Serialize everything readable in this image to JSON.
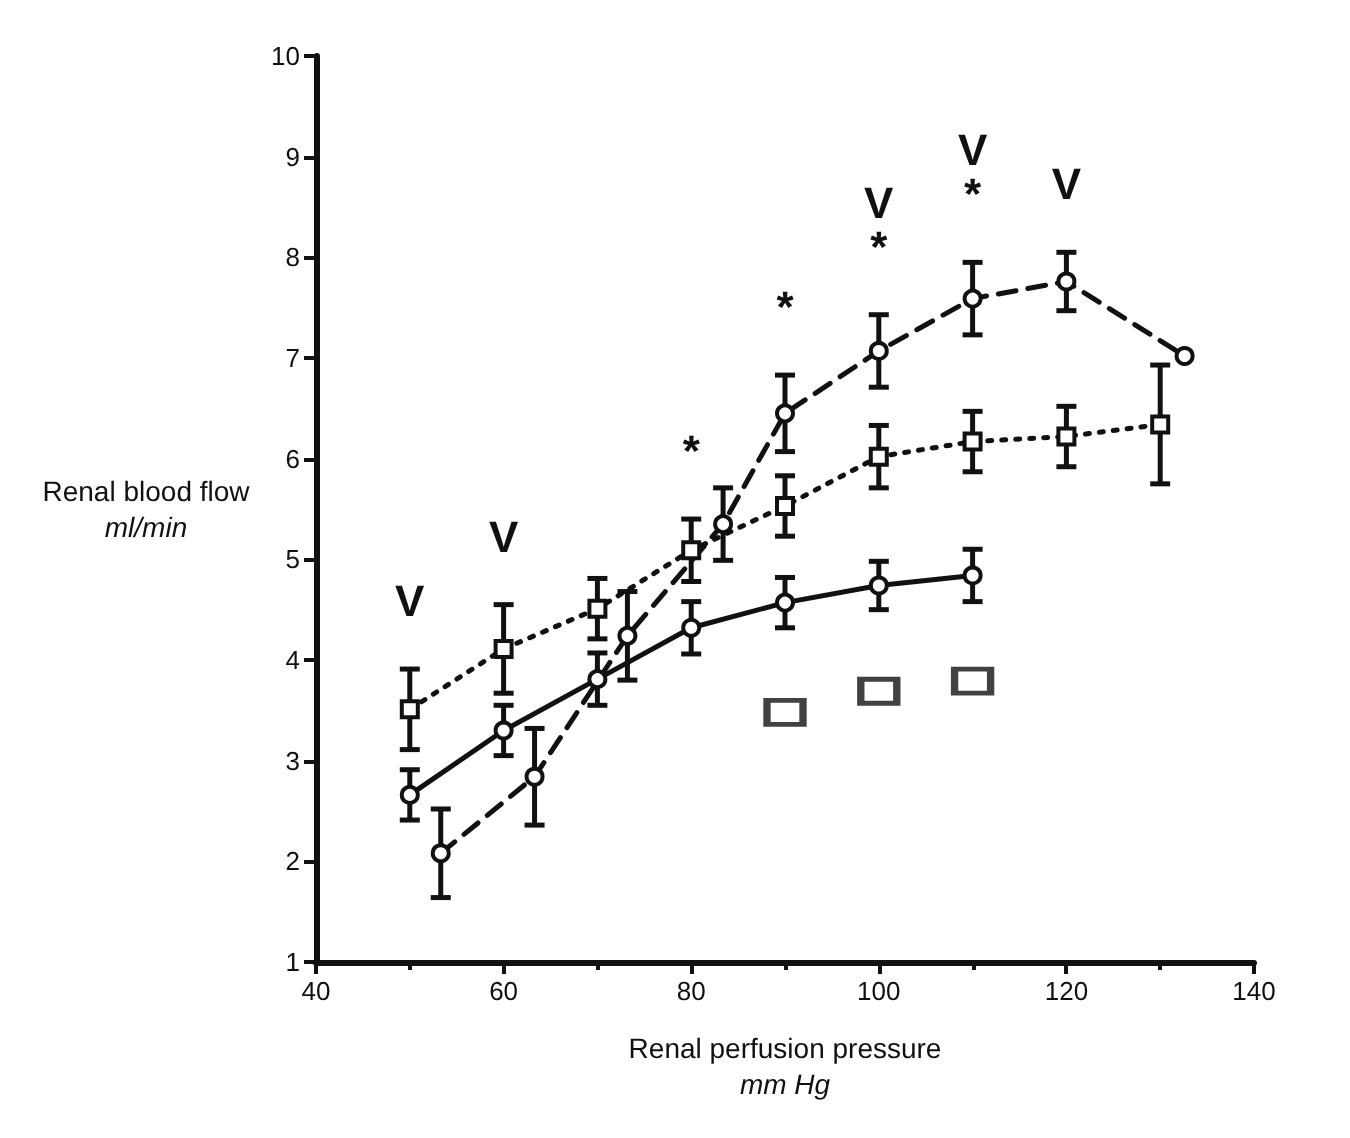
{
  "chart_data": {
    "type": "line",
    "xlabel": "Renal perfusion pressure\nmm Hg",
    "ylabel": "Renal blood flow\nml/min",
    "xlim": [
      40,
      140
    ],
    "xticks": [
      40,
      60,
      80,
      100,
      120,
      140
    ],
    "ylim": [
      1,
      10
    ],
    "yticks": [
      1,
      2,
      3,
      4,
      5,
      6,
      7,
      8,
      9,
      10
    ],
    "grid": false,
    "series": [
      {
        "color": "#111111",
        "marker": "circle",
        "line_style": "solid",
        "x": [
          50,
          60,
          70,
          80,
          90,
          100,
          110
        ],
        "values": [
          2.66,
          3.3,
          3.81,
          4.32,
          4.57,
          4.74,
          4.84
        ],
        "errors": [
          0.25,
          0.25,
          0.26,
          0.26,
          0.25,
          0.24,
          0.26
        ]
      },
      {
        "color": "#111111",
        "marker": "circle",
        "line_style": "dashed",
        "x": [
          53.3,
          63.3,
          73.2,
          83.4,
          90,
          100,
          110,
          120,
          132.6
        ],
        "values": [
          2.08,
          2.84,
          4.24,
          5.35,
          6.45,
          7.07,
          7.59,
          7.76,
          7.02
        ],
        "errors": [
          0.44,
          0.48,
          0.44,
          0.36,
          0.38,
          0.36,
          0.36,
          0.29,
          null
        ]
      },
      {
        "color": "#111111",
        "marker": "square",
        "line_style": "dotted",
        "x": [
          50,
          60,
          70,
          80,
          90,
          100,
          110,
          120,
          130
        ],
        "values": [
          3.51,
          4.11,
          4.51,
          5.09,
          5.53,
          6.02,
          6.17,
          6.22,
          6.34
        ],
        "errors": [
          0.4,
          0.44,
          0.3,
          0.31,
          0.3,
          0.31,
          0.3,
          0.3,
          0.59
        ]
      },
      {
        "type": "scatter",
        "color": "#111111",
        "marker": "square",
        "x": [
          90,
          100,
          110
        ],
        "values": [
          3.48,
          3.69,
          3.79
        ]
      }
    ],
    "annotations": [
      {
        "text": "V",
        "x": 50,
        "y": 3.51
      },
      {
        "text": "V",
        "x": 60,
        "y": 4.11
      },
      {
        "text": "*",
        "x": 80,
        "y": 5.09
      },
      {
        "text": "*",
        "x": 90,
        "y": 6.45
      },
      {
        "text": "*",
        "x": 100,
        "y": 7.07
      },
      {
        "text": "V",
        "x": 100,
        "y": 7.07
      },
      {
        "text": "*",
        "x": 110,
        "y": 7.59
      },
      {
        "text": "V",
        "x": 110,
        "y": 7.59
      },
      {
        "text": "V",
        "x": 120,
        "y": 7.76
      }
    ]
  }
}
